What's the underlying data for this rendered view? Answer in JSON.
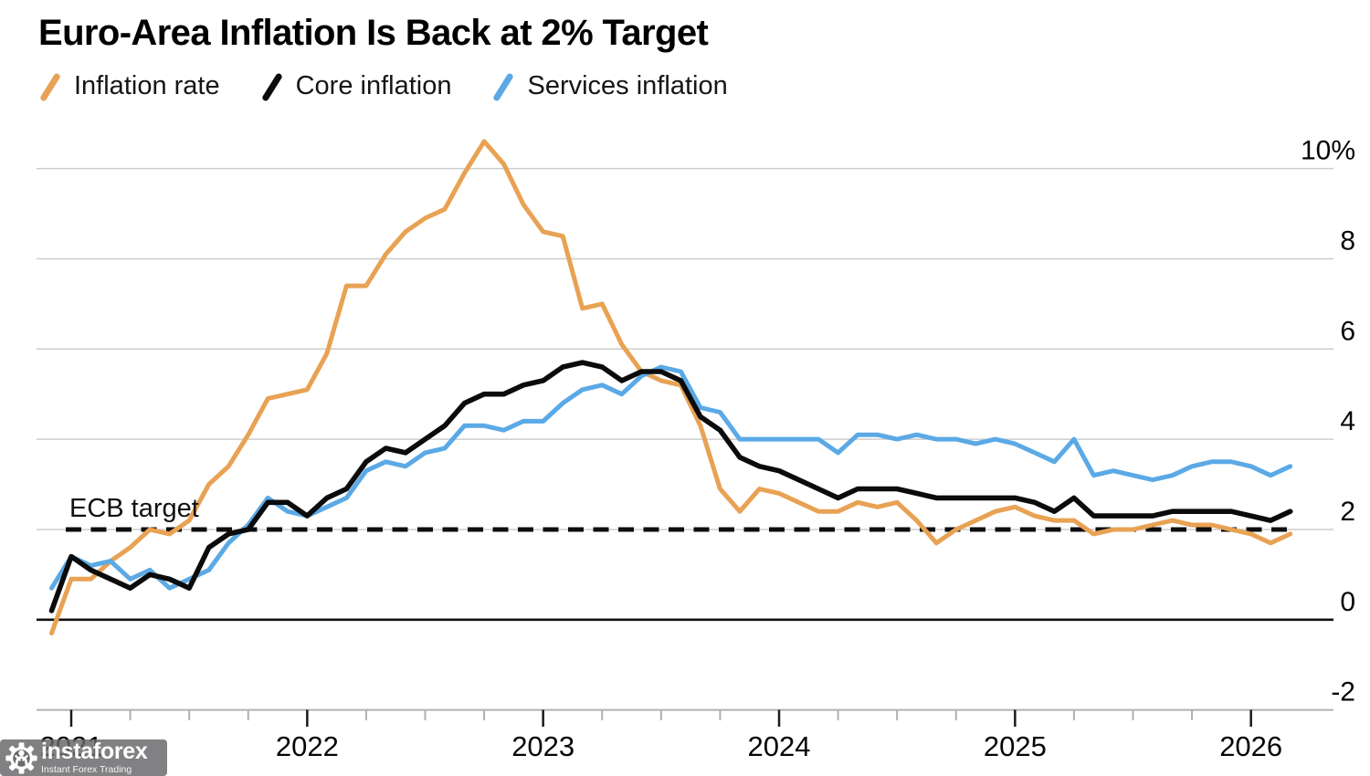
{
  "header": {
    "title": "Euro-Area Inflation Is Back at 2% Target"
  },
  "legend": [
    {
      "label": "Inflation rate",
      "color": "#E8A254"
    },
    {
      "label": "Core inflation",
      "color": "#0B0B0B"
    },
    {
      "label": "Services inflation",
      "color": "#5BA9E6"
    }
  ],
  "annotations": {
    "ecb_target_label": "ECB target"
  },
  "watermark": {
    "brand": "instaforex",
    "tagline": "Instant Forex Trading"
  },
  "chart_data": {
    "type": "line",
    "title": "Euro-Area Inflation Is Back at 2% Target",
    "x_start_month": "2020-12",
    "x_frequency": "monthly",
    "x_tick_labels": [
      "2021",
      "2022",
      "2023",
      "2024",
      "2025",
      "2026"
    ],
    "y_ticks": [
      10,
      8,
      6,
      4,
      2,
      0,
      -2
    ],
    "y_tick_labels": [
      "10%",
      "8",
      "6",
      "4",
      "2",
      "0",
      "-2"
    ],
    "ylim": [
      -2.7,
      11
    ],
    "grid": "horizontal",
    "legend_position": "top",
    "target_line": {
      "value": 2,
      "style": "dashed",
      "label": "ECB target"
    },
    "series": [
      {
        "name": "Inflation rate",
        "color": "#E8A254",
        "values": [
          -0.3,
          0.9,
          0.9,
          1.3,
          1.6,
          2.0,
          1.9,
          2.2,
          3.0,
          3.4,
          4.1,
          4.9,
          5.0,
          5.1,
          5.9,
          7.4,
          7.4,
          8.1,
          8.6,
          8.9,
          9.1,
          9.9,
          10.6,
          10.1,
          9.2,
          8.6,
          8.5,
          6.9,
          7.0,
          6.1,
          5.5,
          5.3,
          5.2,
          4.3,
          2.9,
          2.4,
          2.9,
          2.8,
          2.6,
          2.4,
          2.4,
          2.6,
          2.5,
          2.6,
          2.2,
          1.7,
          2.0,
          2.2,
          2.4,
          2.5,
          2.3,
          2.2,
          2.2,
          1.9,
          2.0,
          2.0,
          2.1,
          2.2,
          2.1,
          2.1,
          2.0,
          1.9,
          1.7,
          1.9
        ]
      },
      {
        "name": "Core inflation",
        "color": "#0B0B0B",
        "values": [
          0.2,
          1.4,
          1.1,
          0.9,
          0.7,
          1.0,
          0.9,
          0.7,
          1.6,
          1.9,
          2.0,
          2.6,
          2.6,
          2.3,
          2.7,
          2.9,
          3.5,
          3.8,
          3.7,
          4.0,
          4.3,
          4.8,
          5.0,
          5.0,
          5.2,
          5.3,
          5.6,
          5.7,
          5.6,
          5.3,
          5.5,
          5.5,
          5.3,
          4.5,
          4.2,
          3.6,
          3.4,
          3.3,
          3.1,
          2.9,
          2.7,
          2.9,
          2.9,
          2.9,
          2.8,
          2.7,
          2.7,
          2.7,
          2.7,
          2.7,
          2.6,
          2.4,
          2.7,
          2.3,
          2.3,
          2.3,
          2.3,
          2.4,
          2.4,
          2.4,
          2.4,
          2.3,
          2.2,
          2.4
        ]
      },
      {
        "name": "Services inflation",
        "color": "#5BA9E6",
        "values": [
          0.7,
          1.4,
          1.2,
          1.3,
          0.9,
          1.1,
          0.7,
          0.9,
          1.1,
          1.7,
          2.1,
          2.7,
          2.4,
          2.3,
          2.5,
          2.7,
          3.3,
          3.5,
          3.4,
          3.7,
          3.8,
          4.3,
          4.3,
          4.2,
          4.4,
          4.4,
          4.8,
          5.1,
          5.2,
          5.0,
          5.4,
          5.6,
          5.5,
          4.7,
          4.6,
          4.0,
          4.0,
          4.0,
          4.0,
          4.0,
          3.7,
          4.1,
          4.1,
          4.0,
          4.1,
          4.0,
          4.0,
          3.9,
          4.0,
          3.9,
          3.7,
          3.5,
          4.0,
          3.2,
          3.3,
          3.2,
          3.1,
          3.2,
          3.4,
          3.5,
          3.5,
          3.4,
          3.2,
          3.4
        ]
      }
    ]
  }
}
